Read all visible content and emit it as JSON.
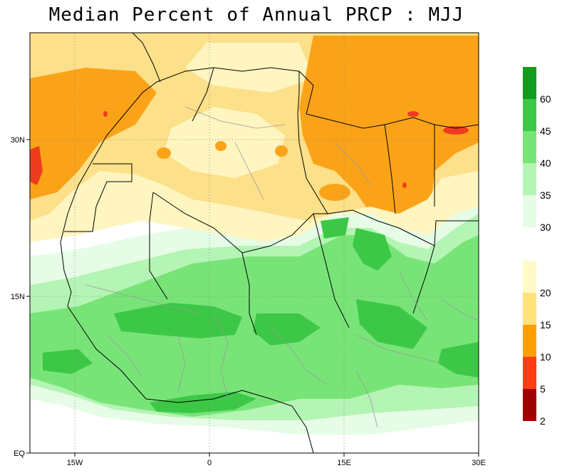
{
  "title": "Median Percent of Annual PRCP   :  MJJ",
  "axes": {
    "x_ticks": [
      "15W",
      "0",
      "15E",
      "30E"
    ],
    "y_ticks": [
      "EQ",
      "15N",
      "30N"
    ]
  },
  "colorbar": {
    "upper": [
      {
        "label": "60",
        "color": "#109c1c"
      },
      {
        "label": "45",
        "color": "#3cc846"
      },
      {
        "label": "40",
        "color": "#78e478"
      },
      {
        "label": "35",
        "color": "#b4f4b4"
      },
      {
        "label": "30",
        "color": "#e6fce6"
      }
    ],
    "lower": [
      {
        "label": "20",
        "color": "#fffac8"
      },
      {
        "label": "15",
        "color": "#ffe27a"
      },
      {
        "label": "10",
        "color": "#ffa000"
      },
      {
        "label": "5",
        "color": "#ff3c14"
      },
      {
        "label": "2",
        "color": "#a00000"
      }
    ]
  },
  "colors": {
    "white": "#ffffff",
    "light_yellow": "#fff5c0",
    "yellow": "#fce08a",
    "orange": "#fba318",
    "red": "#f03c1e",
    "green_pale": "#e6fce6",
    "green_light": "#b4f4b4",
    "green_mid": "#78e478",
    "green": "#3cc846",
    "border": "#000000",
    "admin_border": "#9a9a9a"
  }
}
